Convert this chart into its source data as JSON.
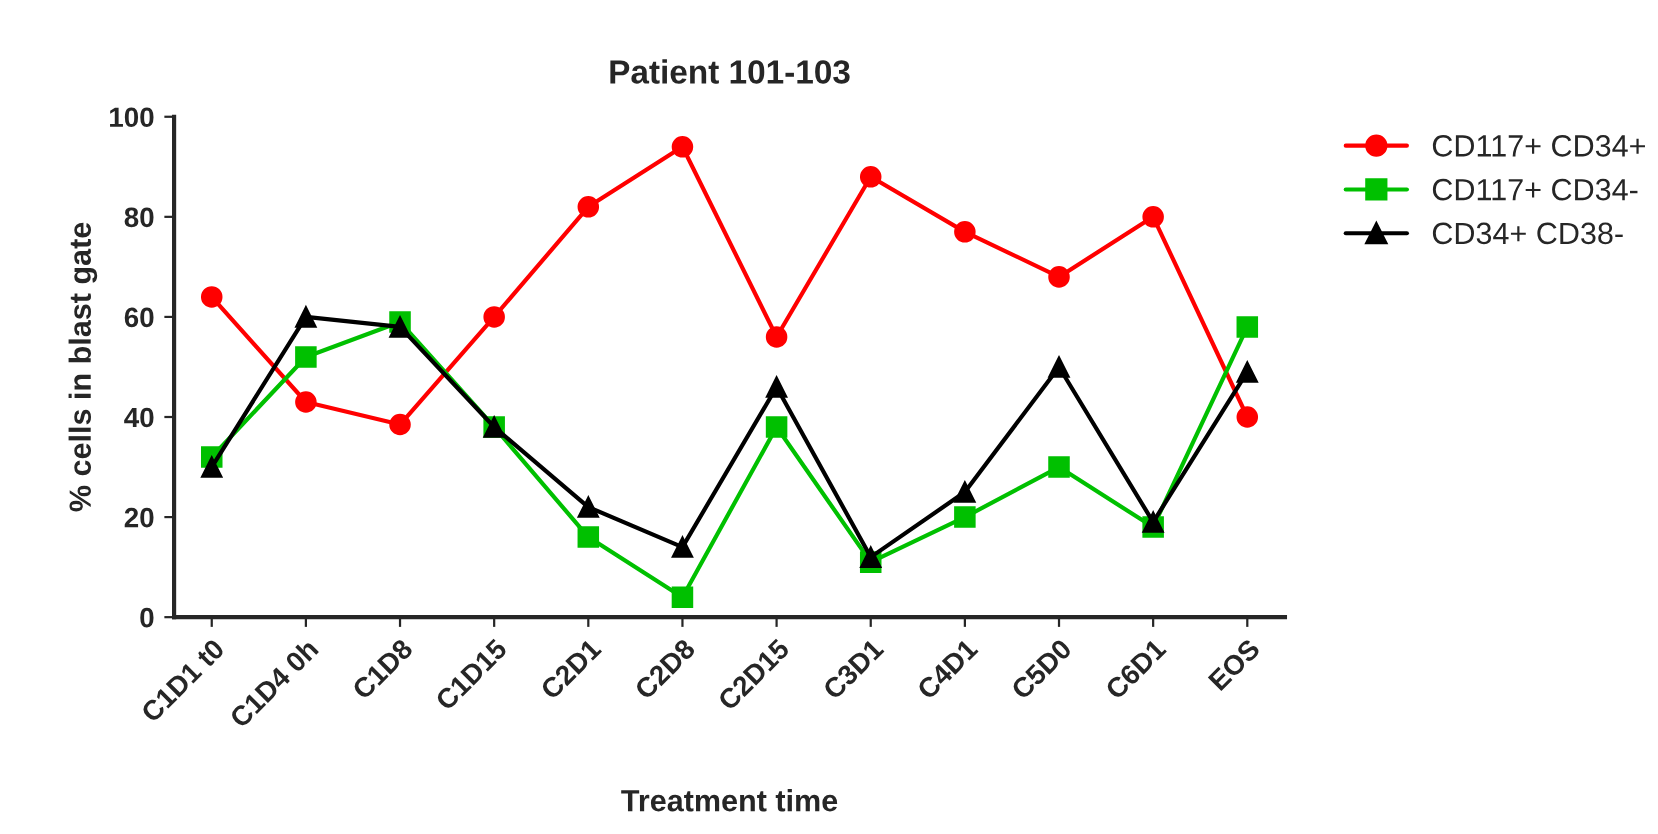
{
  "chart_data": {
    "type": "line",
    "title": "Patient 101-103",
    "xlabel": "Treatment time",
    "ylabel": "% cells in blast gate",
    "categories": [
      "C1D1 t0",
      "C1D4 0h",
      "C1D8",
      "C1D15",
      "C2D1",
      "C2D8",
      "C2D15",
      "C3D1",
      "C4D1",
      "C5D0",
      "C6D1",
      "EOS"
    ],
    "series": [
      {
        "name": "CD117+ CD34+",
        "color": "#ff0000",
        "marker": "circle",
        "values": [
          64,
          43,
          38.5,
          60,
          82,
          94,
          56,
          88,
          77,
          68,
          80,
          40
        ]
      },
      {
        "name": "CD117+ CD34-",
        "color": "#00c000",
        "marker": "square",
        "values": [
          32,
          52,
          59,
          38,
          16,
          4,
          38,
          11,
          20,
          30,
          18,
          58
        ]
      },
      {
        "name": "CD34+ CD38-",
        "color": "#000000",
        "marker": "triangle",
        "values": [
          30,
          60,
          58,
          38,
          22,
          14,
          46,
          12,
          25,
          50,
          19,
          49
        ]
      }
    ],
    "ylim": [
      0,
      100
    ],
    "yticks": [
      0,
      20,
      40,
      60,
      80,
      100
    ],
    "grid": false,
    "legend": "right",
    "line_style": "solid"
  }
}
